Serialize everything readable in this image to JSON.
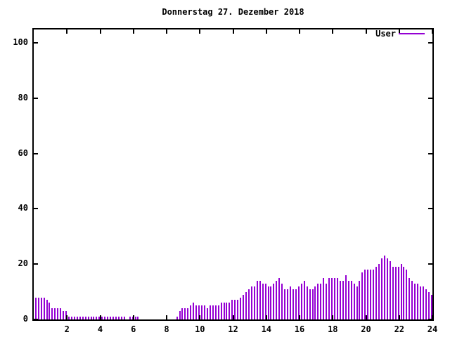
{
  "window": {
    "background": "#ffffff",
    "text_color": "#000000"
  },
  "chart_data": {
    "type": "bar",
    "title": "Donnerstag 27. Dezember 2018",
    "xlabel": "",
    "ylabel": "",
    "xlim": [
      0,
      24
    ],
    "ylim": [
      0,
      104.8
    ],
    "x_ticks": [
      2,
      4,
      6,
      8,
      10,
      12,
      14,
      16,
      18,
      20,
      22,
      24
    ],
    "y_ticks": [
      0,
      20,
      40,
      60,
      80,
      100
    ],
    "grid": false,
    "legend_position": "top-right",
    "interval_minutes": 10,
    "series": [
      {
        "name": "User",
        "color": "#9400d3",
        "values": [
          8,
          8,
          8,
          8,
          7,
          6,
          4,
          4,
          4,
          4,
          3,
          3,
          1,
          1,
          1,
          1,
          1,
          1,
          1,
          1,
          1,
          1,
          1,
          1,
          1,
          1,
          1,
          1,
          1,
          1,
          1,
          1,
          1,
          0,
          1,
          1,
          1,
          1,
          0,
          0,
          0,
          0,
          0,
          0,
          0,
          0,
          0,
          0,
          0,
          0,
          0,
          1,
          3,
          4,
          4,
          4,
          5,
          6,
          5,
          5,
          5,
          5,
          4,
          5,
          5,
          5,
          5,
          6,
          6,
          6,
          6,
          7,
          7,
          7,
          8,
          9,
          10,
          11,
          12,
          12,
          14,
          14,
          13,
          13,
          12,
          12,
          13,
          14,
          15,
          13,
          11,
          11,
          12,
          11,
          11,
          12,
          13,
          14,
          12,
          11,
          11,
          12,
          13,
          13,
          15,
          13,
          15,
          15,
          15,
          15,
          14,
          14,
          16,
          14,
          14,
          13,
          12,
          14,
          17,
          18,
          18,
          18,
          18,
          19,
          20,
          22,
          23,
          22,
          21,
          19,
          19,
          19,
          20,
          19,
          18,
          15,
          14,
          13,
          13,
          12,
          12,
          11,
          10,
          9
        ]
      }
    ]
  }
}
